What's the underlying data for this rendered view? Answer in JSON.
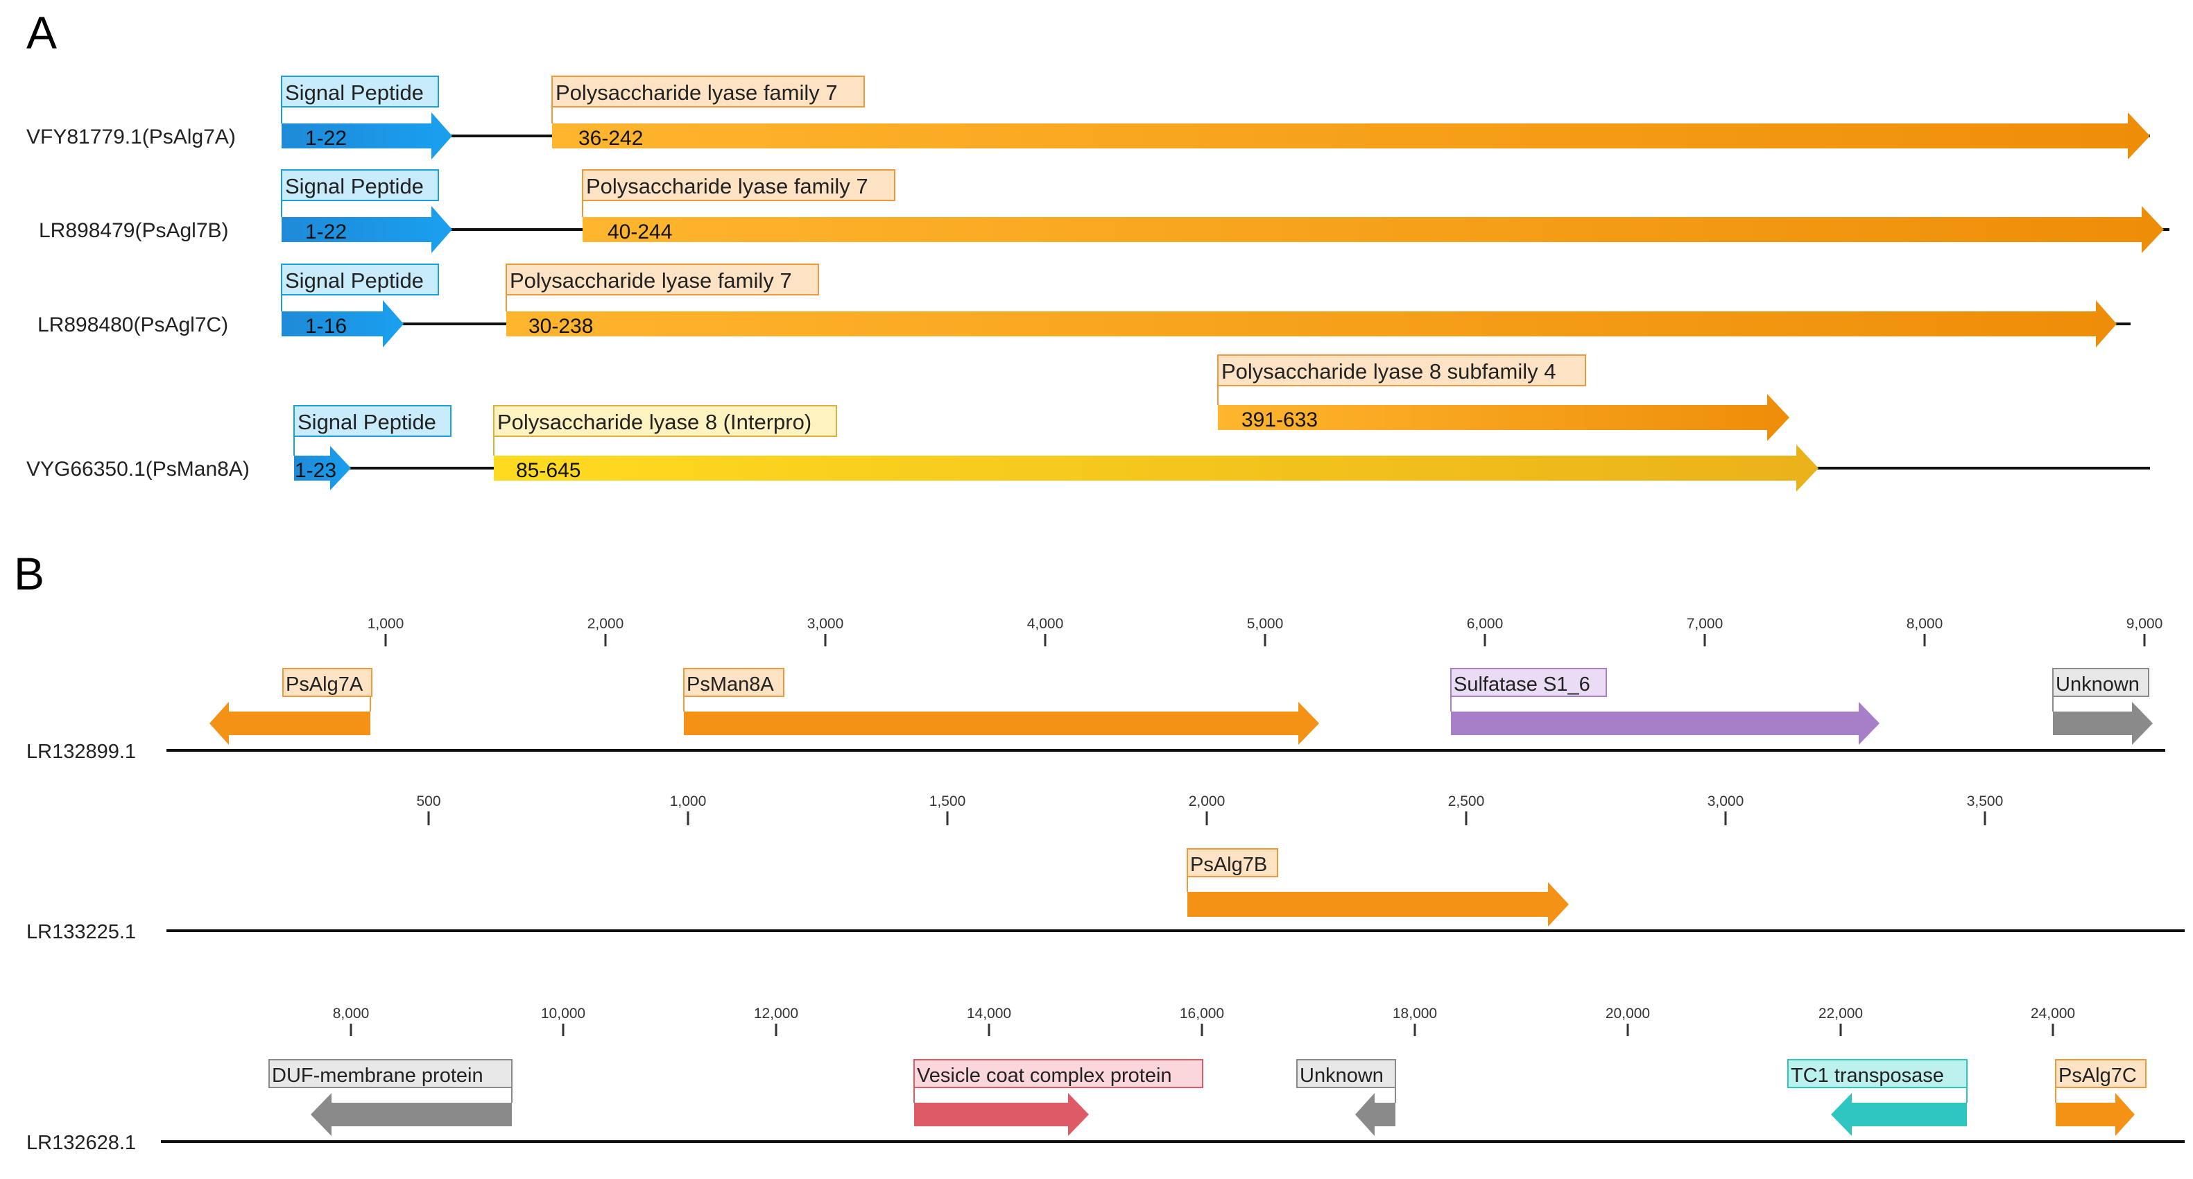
{
  "panel_a": {
    "label": "A",
    "proteins": [
      {
        "name": "VFY81779.1(PsAlg7A)",
        "domains": [
          {
            "label": "Signal Peptide",
            "range": "1-22",
            "kind": "signal"
          },
          {
            "label": "Polysaccharide lyase family 7",
            "range": "36-242",
            "kind": "pl7"
          }
        ]
      },
      {
        "name": "LR898479(PsAgl7B)",
        "domains": [
          {
            "label": "Signal Peptide",
            "range": "1-22",
            "kind": "signal"
          },
          {
            "label": "Polysaccharide lyase family 7",
            "range": "40-244",
            "kind": "pl7"
          }
        ]
      },
      {
        "name": "LR898480(PsAgl7C)",
        "domains": [
          {
            "label": "Signal Peptide",
            "range": "1-16",
            "kind": "signal"
          },
          {
            "label": "Polysaccharide lyase family 7",
            "range": "30-238",
            "kind": "pl7"
          }
        ]
      },
      {
        "name": "VYG66350.1(PsMan8A)",
        "domains": [
          {
            "label": "Signal Peptide",
            "range": "1-23",
            "kind": "signal"
          },
          {
            "label": "Polysaccharide lyase 8 (Interpro)",
            "range": "85-645",
            "kind": "pl8"
          },
          {
            "label": "Polysaccharide lyase 8 subfamily 4",
            "range": "391-633",
            "kind": "pl8sub"
          }
        ]
      }
    ]
  },
  "panel_b": {
    "label": "B",
    "contigs": [
      {
        "name": "LR132899.1",
        "ticks": [
          "1,000",
          "2,000",
          "3,000",
          "4,000",
          "5,000",
          "6,000",
          "7,000",
          "8,000",
          "9,000"
        ],
        "genes": [
          {
            "label": "PsAlg7A",
            "strand": "-",
            "kind": "alginate"
          },
          {
            "label": "PsMan8A",
            "strand": "+",
            "kind": "alginate"
          },
          {
            "label": "Sulfatase S1_6",
            "strand": "+",
            "kind": "sulfatase"
          },
          {
            "label": "Unknown",
            "strand": "+",
            "kind": "unknown"
          }
        ]
      },
      {
        "name": "LR133225.1",
        "ticks": [
          "500",
          "1,000",
          "1,500",
          "2,000",
          "2,500",
          "3,000",
          "3,500"
        ],
        "genes": [
          {
            "label": "PsAlg7B",
            "strand": "+",
            "kind": "alginate"
          }
        ]
      },
      {
        "name": "LR132628.1",
        "ticks": [
          "8,000",
          "10,000",
          "12,000",
          "14,000",
          "16,000",
          "18,000",
          "20,000",
          "22,000",
          "24,000"
        ],
        "genes": [
          {
            "label": "DUF-membrane protein",
            "strand": "-",
            "kind": "unknown"
          },
          {
            "label": "Vesicle coat complex protein",
            "strand": "+",
            "kind": "vesicle"
          },
          {
            "label": "Unknown",
            "strand": "-",
            "kind": "unknown"
          },
          {
            "label": "TC1 transposase",
            "strand": "-",
            "kind": "transposase"
          },
          {
            "label": "PsAlg7C",
            "strand": "+",
            "kind": "alginate"
          }
        ]
      }
    ]
  },
  "colors": {
    "signal": "#1a8fe0",
    "signal_label_bg": "#c8ecfb",
    "signal_label_border": "#1aa0dc",
    "pl7_start": "#ffb52e",
    "pl7_end": "#ee8d08",
    "pl7_label_bg": "#fde3c4",
    "pl7_label_border": "#ee9a3a",
    "pl8_start": "#ffdb20",
    "pl8_end": "#eab21a",
    "pl8_label_bg": "#fdf2c0",
    "pl8_label_border": "#d9b33a",
    "alginate": "#f39214",
    "sulfatase": "#a77fc8",
    "unknown": "#8a8a8a",
    "vesicle": "#de5a66",
    "transposase": "#2fc5c0",
    "backbone": "#111111"
  }
}
